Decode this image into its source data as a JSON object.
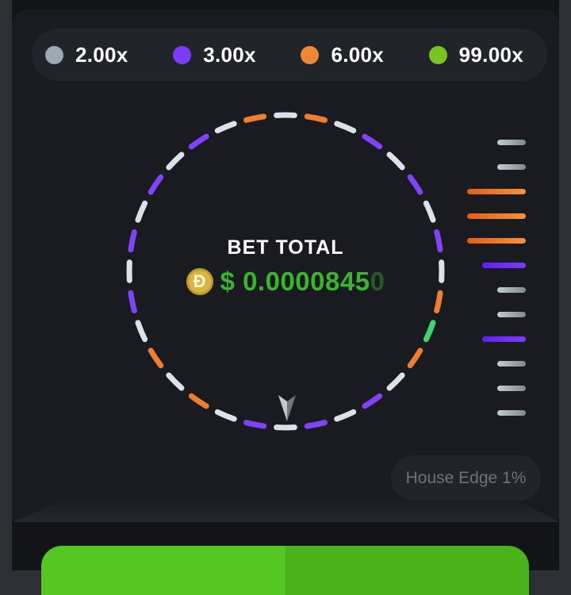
{
  "legend": {
    "items": [
      {
        "label": "2.00x",
        "tier": "gray",
        "color": "#9ea8b3"
      },
      {
        "label": "3.00x",
        "tier": "purple",
        "color": "#7c3bf9"
      },
      {
        "label": "6.00x",
        "tier": "orange",
        "color": "#ef8834"
      },
      {
        "label": "99.00x",
        "tier": "green",
        "color": "#78c521"
      }
    ]
  },
  "wheel": {
    "center_label": "BET TOTAL",
    "currency_icon": "dogecoin",
    "coin_symbol": "Đ",
    "amount_bright": "$ 0.0000845",
    "amount_dim": "0",
    "segment_colors": {
      "white": "#dbe2eb",
      "purple": "#8243f8",
      "orange": "#ef7e30",
      "green": "#3ed46e"
    },
    "segments": [
      "white",
      "orange",
      "white",
      "purple",
      "white",
      "purple",
      "white",
      "purple",
      "white",
      "orange",
      "green",
      "orange",
      "white",
      "purple",
      "white",
      "purple",
      "white",
      "purple",
      "white",
      "orange",
      "white",
      "orange",
      "white",
      "purple",
      "white",
      "purple",
      "white",
      "purple",
      "white",
      "purple",
      "white",
      "orange"
    ]
  },
  "history": {
    "items": [
      {
        "tier": "gray",
        "multiplier": "2.00x"
      },
      {
        "tier": "gray",
        "multiplier": "2.00x"
      },
      {
        "tier": "orange",
        "multiplier": "6.00x"
      },
      {
        "tier": "orange",
        "multiplier": "6.00x"
      },
      {
        "tier": "orange",
        "multiplier": "6.00x"
      },
      {
        "tier": "purple",
        "multiplier": "3.00x"
      },
      {
        "tier": "gray",
        "multiplier": "2.00x"
      },
      {
        "tier": "gray",
        "multiplier": "2.00x"
      },
      {
        "tier": "purple",
        "multiplier": "3.00x"
      },
      {
        "tier": "gray",
        "multiplier": "2.00x"
      },
      {
        "tier": "gray",
        "multiplier": "2.00x"
      },
      {
        "tier": "gray",
        "multiplier": "2.00x"
      }
    ]
  },
  "house_edge": {
    "label": "House Edge 1%"
  }
}
